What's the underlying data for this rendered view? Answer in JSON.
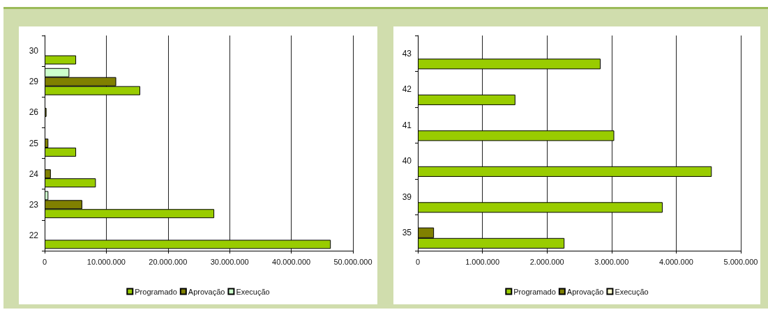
{
  "chart_data": [
    {
      "type": "bar",
      "orientation": "horizontal",
      "categories": [
        "30",
        "29",
        "26",
        "25",
        "24",
        "23",
        "22"
      ],
      "series": [
        {
          "name": "Programado",
          "color": "#99cc00",
          "values": [
            5100000,
            15500000,
            null,
            5100000,
            8300000,
            27500000,
            46400000
          ]
        },
        {
          "name": "Aprovação",
          "color": "#808000",
          "values": [
            null,
            11600000,
            300000,
            600000,
            1000000,
            6100000,
            null
          ]
        },
        {
          "name": "Execução",
          "color": "#ccffcc",
          "values": [
            null,
            4000000,
            null,
            null,
            null,
            600000,
            null
          ]
        }
      ],
      "xlim": [
        0,
        50000000
      ],
      "xticks": [
        0,
        {
          "value": 10000000,
          "label": "10.000.000"
        },
        {
          "value": 20000000,
          "label": "20.000.000"
        },
        {
          "value": 30000000,
          "label": "30.000.000"
        },
        {
          "value": 40000000,
          "label": "40.000.000"
        },
        {
          "value": 50000000,
          "label": "50.000.000"
        }
      ],
      "grid": "x",
      "legend": "bottom"
    },
    {
      "type": "bar",
      "orientation": "horizontal",
      "categories": [
        "43",
        "42",
        "41",
        "40",
        "39",
        "35"
      ],
      "series": [
        {
          "name": "Programado",
          "color": "#99cc00",
          "values": [
            2830000,
            1510000,
            3040000,
            4550000,
            3790000,
            2270000
          ]
        },
        {
          "name": "Aprovação",
          "color": "#808000",
          "values": [
            null,
            null,
            null,
            null,
            null,
            250000
          ]
        },
        {
          "name": "Execução",
          "color": "#ffffcc",
          "values": [
            null,
            null,
            null,
            null,
            null,
            null
          ]
        }
      ],
      "xlim": [
        0,
        5000000
      ],
      "xticks": [
        0,
        {
          "value": 1000000,
          "label": "1.000.000"
        },
        {
          "value": 2000000,
          "label": "2.000.000"
        },
        {
          "value": 3000000,
          "label": "3.000.000"
        },
        {
          "value": 4000000,
          "label": "4.000.000"
        },
        {
          "value": 5000000,
          "label": "5.000.000"
        }
      ],
      "grid": "x",
      "legend": "bottom"
    }
  ]
}
